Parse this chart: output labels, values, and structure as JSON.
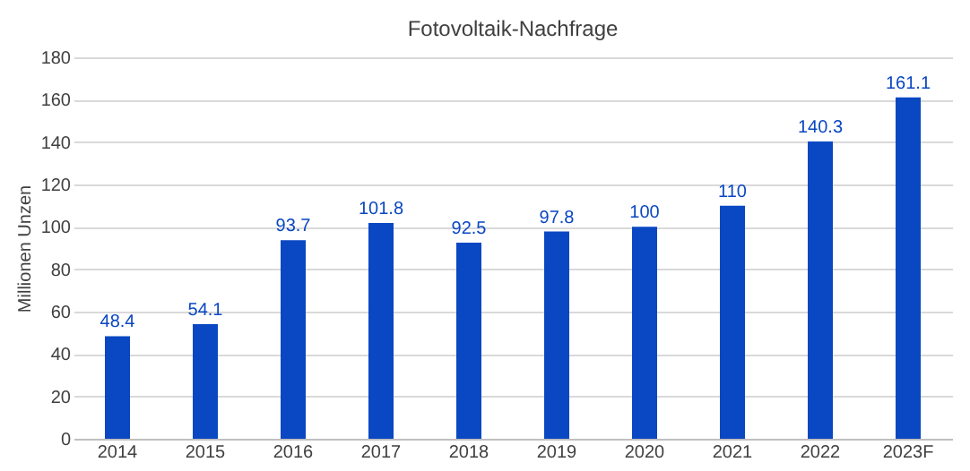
{
  "chart_data": {
    "type": "bar",
    "title": "Fotovoltaik-Nachfrage",
    "ylabel": "Millionen Unzen",
    "categories": [
      "2014",
      "2015",
      "2016",
      "2017",
      "2018",
      "2019",
      "2020",
      "2021",
      "2022",
      "2023F"
    ],
    "values": [
      48.4,
      54.1,
      93.7,
      101.8,
      92.5,
      97.8,
      100,
      110,
      140.3,
      161.1
    ],
    "color": "#0a47c2",
    "ylim": [
      0,
      180
    ],
    "yticks": [
      0,
      20,
      40,
      60,
      80,
      100,
      120,
      140,
      160,
      180
    ],
    "grid": "y",
    "data_labels": true
  }
}
